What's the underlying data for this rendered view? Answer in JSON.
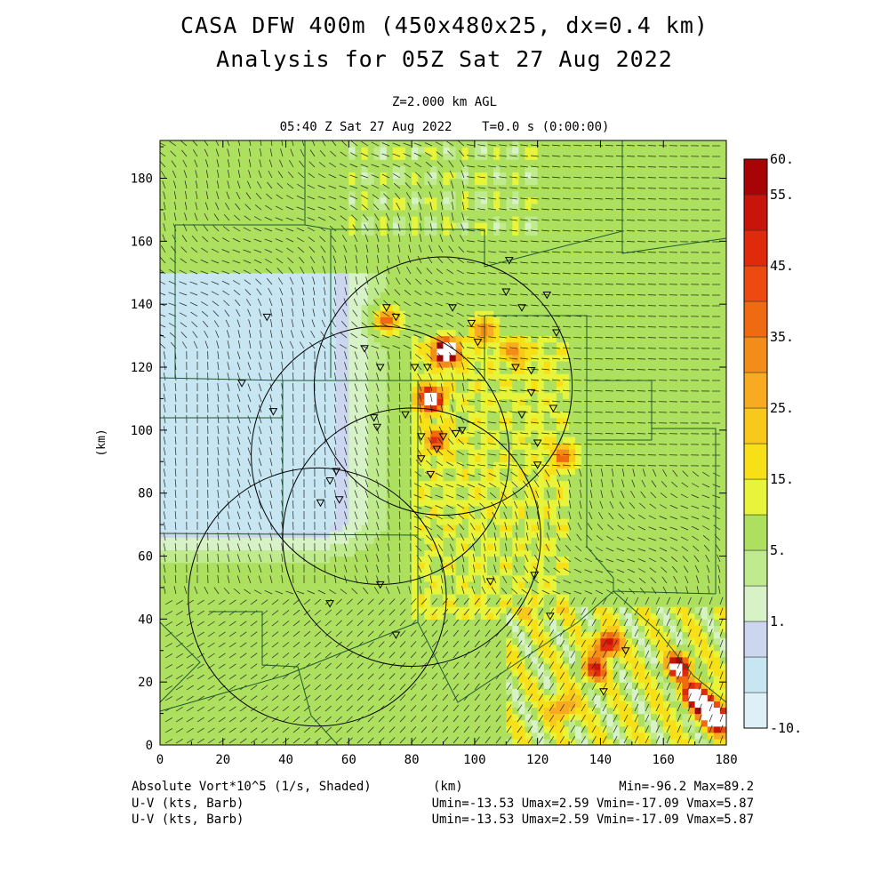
{
  "header": {
    "title_line1": "CASA DFW 400m (450x480x25, dx=0.4 km)",
    "title_line2": "Analysis for 05Z Sat 27 Aug 2022",
    "level": "Z=2.000 km AGL",
    "time": "05:40 Z Sat 27 Aug 2022    T=0.0 s (0:00:00)"
  },
  "footer": {
    "field1": "Absolute Vort*10^5 (1/s, Shaded)",
    "field2": "U-V (kts, Barb)",
    "field3": "U-V (kts, Barb)",
    "x_unit": "(km)",
    "minmax": "Min=-96.2 Max=89.2",
    "uv_stats_1": "Umin=-13.53 Umax=2.59 Vmin=-17.09 Vmax=5.87",
    "uv_stats_2": "Umin=-13.53 Umax=2.59 Vmin=-17.09 Vmax=5.87"
  },
  "chart_data": {
    "type": "heatmap",
    "title": "CASA DFW 400m (450x480x25, dx=0.4 km)",
    "subtitle": "Analysis for 05Z Sat 27 Aug 2022",
    "xlabel": "",
    "ylabel": "(km)",
    "x_unit_label": "(km)",
    "xlim": [
      0,
      180
    ],
    "ylim": [
      0,
      192
    ],
    "x_ticks": [
      0,
      20,
      40,
      60,
      80,
      100,
      120,
      140,
      160,
      180
    ],
    "y_ticks": [
      0,
      20,
      40,
      60,
      80,
      100,
      120,
      140,
      160,
      180
    ],
    "field_min": -96.2,
    "field_max": 89.2,
    "colorbar": {
      "levels": [
        -10,
        -5,
        0,
        1,
        3,
        5,
        10,
        15,
        20,
        25,
        30,
        35,
        40,
        45,
        50,
        55,
        60
      ],
      "labels": [
        {
          "value": 60,
          "text": "60."
        },
        {
          "value": 55,
          "text": "55."
        },
        {
          "value": 45,
          "text": "45."
        },
        {
          "value": 35,
          "text": "35."
        },
        {
          "value": 25,
          "text": "25."
        },
        {
          "value": 15,
          "text": "15."
        },
        {
          "value": 5,
          "text": "5."
        },
        {
          "value": 1,
          "text": "1."
        },
        {
          "value": -10,
          "text": "-10."
        }
      ],
      "colors": [
        "#ddf0f8",
        "#c7e6f2",
        "#ccd6ee",
        "#d8f2c8",
        "#c0ea8e",
        "#aee060",
        "#e8f43a",
        "#f8e018",
        "#f8c81a",
        "#f8aa20",
        "#f48c1a",
        "#f06a12",
        "#ec4a10",
        "#e02a0c",
        "#c8140a",
        "#a80406"
      ]
    },
    "radar_rings": [
      {
        "center": [
          90,
          114
        ],
        "radius": 41
      },
      {
        "center": [
          70,
          92
        ],
        "radius": 41
      },
      {
        "center": [
          80,
          66
        ],
        "radius": 41
      },
      {
        "center": [
          50,
          47
        ],
        "radius": 41
      }
    ],
    "radar_sites": [
      [
        34,
        136
      ],
      [
        26,
        115
      ],
      [
        36,
        106
      ],
      [
        72,
        139
      ],
      [
        75,
        136
      ],
      [
        65,
        126
      ],
      [
        70,
        120
      ],
      [
        81,
        120
      ],
      [
        85,
        120
      ],
      [
        93,
        139
      ],
      [
        101,
        128
      ],
      [
        99,
        134
      ],
      [
        111,
        154
      ],
      [
        110,
        144
      ],
      [
        115,
        139
      ],
      [
        123,
        143
      ],
      [
        113,
        120
      ],
      [
        118,
        119
      ],
      [
        126,
        131
      ],
      [
        118,
        112
      ],
      [
        125,
        107
      ],
      [
        115,
        105
      ],
      [
        78,
        105
      ],
      [
        83,
        98
      ],
      [
        68,
        104
      ],
      [
        69,
        101
      ],
      [
        90,
        98
      ],
      [
        94,
        99
      ],
      [
        96,
        100
      ],
      [
        83,
        91
      ],
      [
        88,
        94
      ],
      [
        86,
        86
      ],
      [
        120,
        96
      ],
      [
        120,
        89
      ],
      [
        56,
        87
      ],
      [
        54,
        84
      ],
      [
        57,
        78
      ],
      [
        51,
        77
      ],
      [
        70,
        51
      ],
      [
        105,
        52
      ],
      [
        119,
        54
      ],
      [
        124,
        41
      ],
      [
        148,
        30
      ],
      [
        141,
        17
      ],
      [
        75,
        35
      ],
      [
        54,
        45
      ]
    ],
    "hotspots": [
      {
        "x": 91,
        "y": 125,
        "value": 89.2
      },
      {
        "x": 86,
        "y": 110,
        "value": 75
      },
      {
        "x": 72,
        "y": 135,
        "value": 40
      },
      {
        "x": 88,
        "y": 97,
        "value": 40
      },
      {
        "x": 103,
        "y": 132,
        "value": 35
      },
      {
        "x": 113,
        "y": 125,
        "value": 30
      },
      {
        "x": 128,
        "y": 92,
        "value": 30
      },
      {
        "x": 142,
        "y": 32,
        "value": 60
      },
      {
        "x": 165,
        "y": 25,
        "value": 65
      },
      {
        "x": 170,
        "y": 16,
        "value": 70
      },
      {
        "x": 174,
        "y": 12,
        "value": 70
      },
      {
        "x": 178,
        "y": 8,
        "value": 75
      },
      {
        "x": 138,
        "y": 24,
        "value": 45
      },
      {
        "x": 128,
        "y": 12,
        "value": 35
      }
    ]
  }
}
